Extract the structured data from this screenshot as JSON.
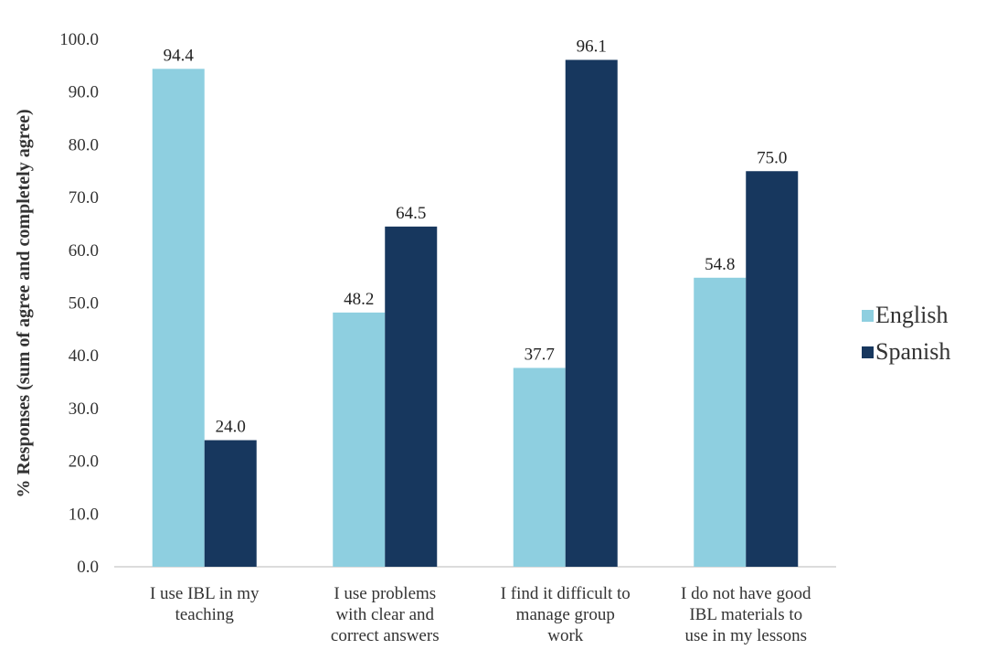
{
  "chart_data": {
    "type": "bar",
    "title": "",
    "xlabel": "",
    "ylabel": "% Responses (sum of agree and completely agree)",
    "ylim": [
      0,
      100
    ],
    "yticks": [
      "0.0",
      "10.0",
      "20.0",
      "30.0",
      "40.0",
      "50.0",
      "60.0",
      "70.0",
      "80.0",
      "90.0",
      "100.0"
    ],
    "grid": false,
    "legend_position": "right",
    "categories": [
      [
        "I use IBL in my",
        "teaching"
      ],
      [
        "I use problems",
        "with clear and",
        "correct answers"
      ],
      [
        "I find it difficult to",
        "manage group",
        "work"
      ],
      [
        "I do not have good",
        "IBL materials to",
        "use in my lessons"
      ]
    ],
    "series": [
      {
        "name": "English",
        "color": "#8ecfe0",
        "values": [
          94.4,
          48.2,
          37.7,
          54.8
        ],
        "labels": [
          "94.4",
          "48.2",
          "37.7",
          "54.8"
        ]
      },
      {
        "name": "Spanish",
        "color": "#17375e",
        "values": [
          24.0,
          64.5,
          96.1,
          75.0
        ],
        "labels": [
          "24.0",
          "64.5",
          "96.1",
          "75.0"
        ]
      }
    ]
  }
}
